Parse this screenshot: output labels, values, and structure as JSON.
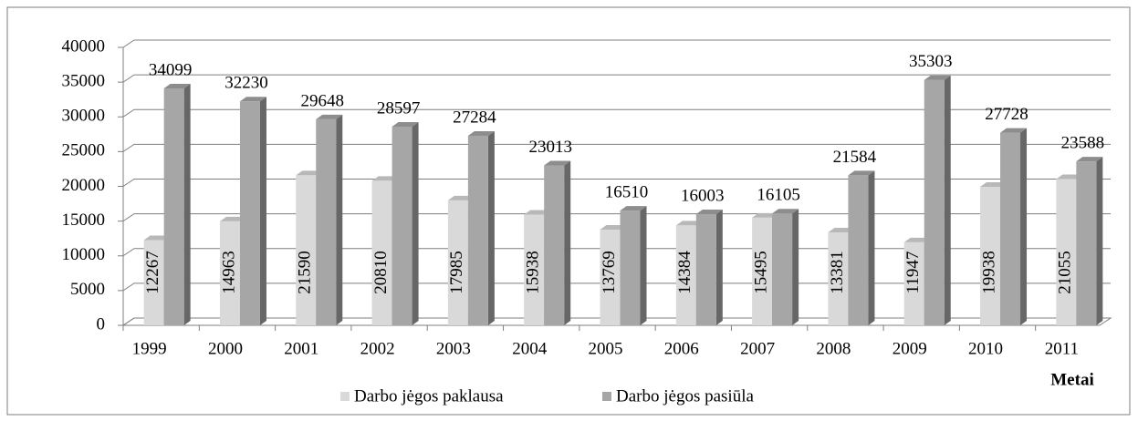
{
  "chart_data": {
    "type": "bar",
    "categories": [
      "1999",
      "2000",
      "2001",
      "2002",
      "2003",
      "2004",
      "2005",
      "2006",
      "2007",
      "2008",
      "2009",
      "2010",
      "2011"
    ],
    "series": [
      {
        "name": "Darbo jėgos paklausa",
        "color": "#d9d9d9",
        "values": [
          12267,
          14963,
          21590,
          20810,
          17985,
          15938,
          13769,
          14384,
          15495,
          13381,
          11947,
          19938,
          21055
        ]
      },
      {
        "name": "Darbo jėgos pasiūla",
        "color": "#a6a6a6",
        "values": [
          34099,
          32230,
          29648,
          28597,
          27284,
          23013,
          16510,
          16003,
          16105,
          21584,
          35303,
          27728,
          23588
        ]
      }
    ],
    "x_label": "Metai",
    "ylim": [
      0,
      40000
    ],
    "yticks": [
      0,
      5000,
      10000,
      15000,
      20000,
      25000,
      30000,
      35000,
      40000
    ],
    "grid": true,
    "legend": "bottom"
  }
}
